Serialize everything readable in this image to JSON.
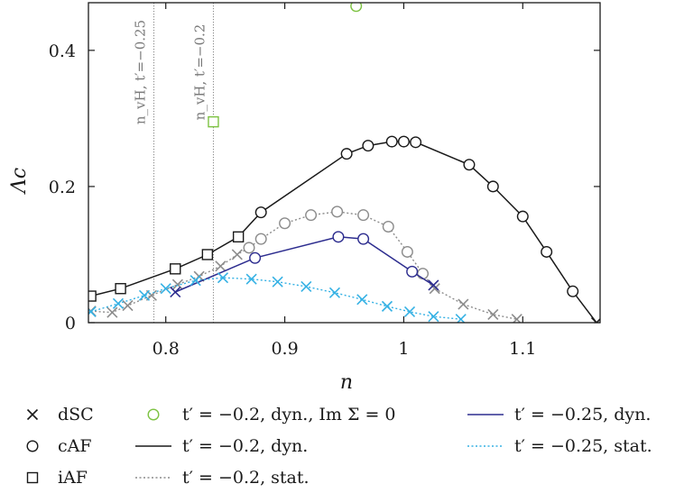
{
  "chart_data": {
    "type": "line",
    "xlabel": "n",
    "ylabel": "Λc",
    "xlim": [
      0.735,
      1.165
    ],
    "ylim": [
      0,
      0.47
    ],
    "x_ticks": [
      0.8,
      0.9,
      1,
      1.1
    ],
    "x_tick_labels": [
      "0.8",
      "0.9",
      "1",
      "1.1"
    ],
    "y_ticks": [
      0,
      0.2,
      0.4
    ],
    "y_tick_labels": [
      "0",
      "0.2",
      "0.4"
    ],
    "grid": false,
    "legend_position": "below",
    "vertical_lines": [
      {
        "x": 0.79,
        "label": "n_vH, t′=−0.25"
      },
      {
        "x": 0.84,
        "label": "n_vH, t′=−0.2"
      }
    ],
    "legend": {
      "markers": [
        {
          "symbol": "cross",
          "label": "dSC"
        },
        {
          "symbol": "circle",
          "label": "cAF"
        },
        {
          "symbol": "square",
          "label": "iAF"
        }
      ],
      "series_entries": [
        {
          "label": "t′ = −0.2, dyn., Im Σ = 0",
          "color": "#7dc242",
          "marker": "circle",
          "line": "none"
        },
        {
          "label": "t′ = −0.2, dyn.",
          "color": "#1a1a1a",
          "line": "solid"
        },
        {
          "label": "t′ = −0.2, stat.",
          "color": "#8c8c8c",
          "line": "dotted"
        },
        {
          "label": "t′ = −0.25, dyn.",
          "color": "#2d2d8f",
          "line": "solid"
        },
        {
          "label": "t′ = −0.25, stat.",
          "color": "#35b1e4",
          "line": "dotted"
        }
      ]
    },
    "series": [
      {
        "color": "#1a1a1a",
        "line": "solid",
        "points": [
          {
            "x": 0.737,
            "y": 0.039,
            "m": "square"
          },
          {
            "x": 0.762,
            "y": 0.05,
            "m": "square"
          },
          {
            "x": 0.808,
            "y": 0.079,
            "m": "square"
          },
          {
            "x": 0.835,
            "y": 0.1,
            "m": "square"
          },
          {
            "x": 0.861,
            "y": 0.126,
            "m": "square"
          },
          {
            "x": 0.88,
            "y": 0.162,
            "m": "circle"
          },
          {
            "x": 0.952,
            "y": 0.248,
            "m": "circle"
          },
          {
            "x": 0.97,
            "y": 0.26,
            "m": "circle"
          },
          {
            "x": 0.99,
            "y": 0.266,
            "m": "circle"
          },
          {
            "x": 1.0,
            "y": 0.266,
            "m": "circle"
          },
          {
            "x": 1.01,
            "y": 0.265,
            "m": "circle"
          },
          {
            "x": 1.055,
            "y": 0.232,
            "m": "circle"
          },
          {
            "x": 1.075,
            "y": 0.2,
            "m": "circle"
          },
          {
            "x": 1.1,
            "y": 0.156,
            "m": "circle"
          },
          {
            "x": 1.12,
            "y": 0.104,
            "m": "circle"
          },
          {
            "x": 1.142,
            "y": 0.046,
            "m": "circle"
          },
          {
            "x": 1.162,
            "y": 0.0,
            "m": "cross"
          }
        ]
      },
      {
        "color": "#8c8c8c",
        "line": "dotted",
        "points": [
          {
            "x": 0.737,
            "y": 0.017,
            "m": "cross"
          },
          {
            "x": 0.755,
            "y": 0.015,
            "m": "cross"
          },
          {
            "x": 0.768,
            "y": 0.025,
            "m": "cross"
          },
          {
            "x": 0.788,
            "y": 0.04,
            "m": "cross"
          },
          {
            "x": 0.81,
            "y": 0.056,
            "m": "cross"
          },
          {
            "x": 0.828,
            "y": 0.068,
            "m": "cross"
          },
          {
            "x": 0.846,
            "y": 0.083,
            "m": "cross"
          },
          {
            "x": 0.86,
            "y": 0.1,
            "m": "cross"
          },
          {
            "x": 0.87,
            "y": 0.11,
            "m": "circle"
          },
          {
            "x": 0.88,
            "y": 0.123,
            "m": "circle"
          },
          {
            "x": 0.9,
            "y": 0.146,
            "m": "circle"
          },
          {
            "x": 0.922,
            "y": 0.158,
            "m": "circle"
          },
          {
            "x": 0.944,
            "y": 0.163,
            "m": "circle"
          },
          {
            "x": 0.966,
            "y": 0.158,
            "m": "circle"
          },
          {
            "x": 0.987,
            "y": 0.141,
            "m": "circle"
          },
          {
            "x": 1.003,
            "y": 0.104,
            "m": "circle"
          },
          {
            "x": 1.016,
            "y": 0.072,
            "m": "circle"
          },
          {
            "x": 1.026,
            "y": 0.05,
            "m": "cross"
          },
          {
            "x": 1.05,
            "y": 0.027,
            "m": "cross"
          },
          {
            "x": 1.075,
            "y": 0.012,
            "m": "cross"
          },
          {
            "x": 1.095,
            "y": 0.005,
            "m": "cross"
          }
        ]
      },
      {
        "color": "#2d2d8f",
        "line": "solid",
        "points": [
          {
            "x": 0.808,
            "y": 0.045,
            "m": "cross"
          },
          {
            "x": 0.875,
            "y": 0.095,
            "m": "circle"
          },
          {
            "x": 0.945,
            "y": 0.126,
            "m": "circle"
          },
          {
            "x": 0.966,
            "y": 0.123,
            "m": "circle"
          },
          {
            "x": 1.007,
            "y": 0.075,
            "m": "circle"
          },
          {
            "x": 1.025,
            "y": 0.055,
            "m": "cross"
          }
        ]
      },
      {
        "color": "#35b1e4",
        "line": "dotted",
        "points": [
          {
            "x": 0.737,
            "y": 0.016,
            "m": "cross"
          },
          {
            "x": 0.76,
            "y": 0.028,
            "m": "cross"
          },
          {
            "x": 0.782,
            "y": 0.04,
            "m": "cross"
          },
          {
            "x": 0.8,
            "y": 0.05,
            "m": "cross"
          },
          {
            "x": 0.825,
            "y": 0.062,
            "m": "cross"
          },
          {
            "x": 0.848,
            "y": 0.066,
            "m": "cross"
          },
          {
            "x": 0.872,
            "y": 0.064,
            "m": "cross"
          },
          {
            "x": 0.894,
            "y": 0.06,
            "m": "cross"
          },
          {
            "x": 0.918,
            "y": 0.053,
            "m": "cross"
          },
          {
            "x": 0.942,
            "y": 0.044,
            "m": "cross"
          },
          {
            "x": 0.965,
            "y": 0.034,
            "m": "cross"
          },
          {
            "x": 0.986,
            "y": 0.024,
            "m": "cross"
          },
          {
            "x": 1.005,
            "y": 0.016,
            "m": "cross"
          },
          {
            "x": 1.025,
            "y": 0.009,
            "m": "cross"
          },
          {
            "x": 1.048,
            "y": 0.005,
            "m": "cross"
          }
        ]
      },
      {
        "color": "#7dc242",
        "line": "none",
        "points": [
          {
            "x": 0.96,
            "y": 0.465,
            "m": "circle"
          },
          {
            "x": 0.84,
            "y": 0.295,
            "m": "square"
          }
        ]
      }
    ]
  }
}
